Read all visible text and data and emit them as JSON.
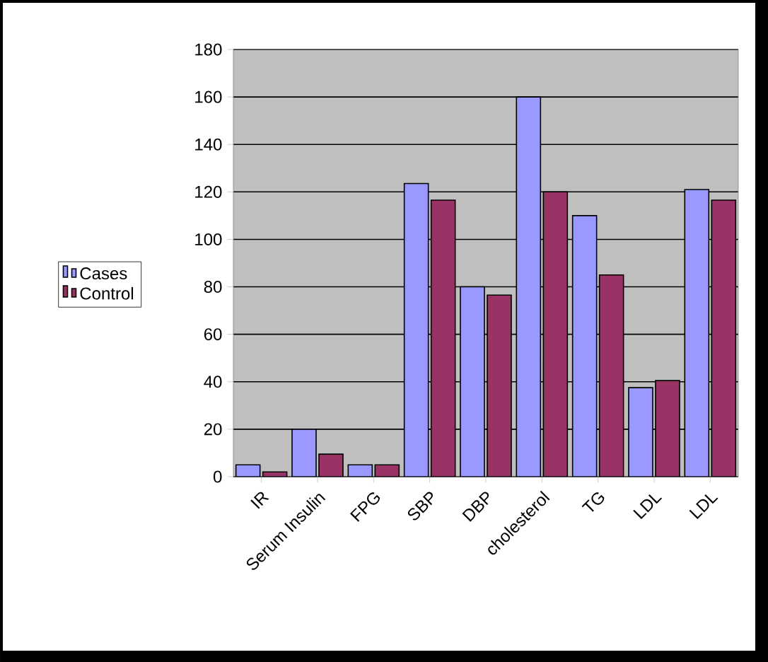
{
  "chart_data": {
    "type": "bar",
    "categories": [
      "IR",
      "Serum Insulin",
      "FPG",
      "SBP",
      "DBP",
      "cholesterol",
      "TG",
      "LDL",
      "LDL"
    ],
    "series": [
      {
        "name": "Cases",
        "color": "#9999ff",
        "values": [
          5,
          20,
          5,
          123.5,
          80,
          160,
          110,
          37.5,
          121
        ]
      },
      {
        "name": "Control",
        "color": "#993366",
        "values": [
          2,
          9.5,
          5,
          116.5,
          76.5,
          120,
          85,
          40.5,
          116.5
        ]
      }
    ],
    "ylim": [
      0,
      180
    ],
    "yticks": [
      0,
      20,
      40,
      60,
      80,
      100,
      120,
      140,
      160,
      180
    ],
    "grid": "y",
    "legend": "left"
  }
}
